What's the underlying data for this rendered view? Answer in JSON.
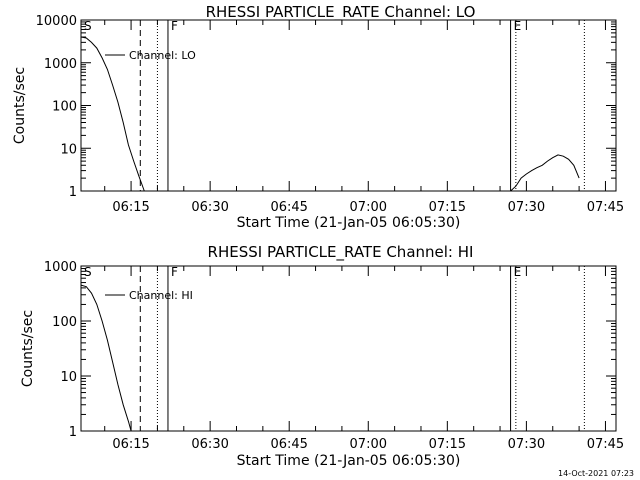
{
  "chart_data": [
    {
      "type": "line",
      "title": "RHESSI PARTICLE_RATE Channel: LO",
      "xlabel": "Start Time (21-Jan-05 06:05:30)",
      "ylabel": "Counts/sec",
      "yscale": "log",
      "ylim": [
        1,
        10000
      ],
      "ytick_labels": [
        "1",
        "10",
        "100",
        "1000",
        "10000"
      ],
      "xlim": [
        "06:05:30",
        "07:47:00"
      ],
      "xtick_labels": [
        "06:15",
        "06:30",
        "06:45",
        "07:00",
        "07:15",
        "07:30",
        "07:45"
      ],
      "legend": "Channel: LO",
      "markers": [
        {
          "label": "S",
          "time": "06:05:30",
          "style": "solid"
        },
        {
          "label": "",
          "time": "06:16:45",
          "style": "dashed"
        },
        {
          "label": "",
          "time": "06:20:00",
          "style": "dotted"
        },
        {
          "label": "F",
          "time": "06:22:00",
          "style": "solid"
        },
        {
          "label": "E",
          "time": "07:27:00",
          "style": "solid"
        },
        {
          "label": "",
          "time": "07:28:00",
          "style": "dotted"
        },
        {
          "label": "",
          "time": "07:41:00",
          "style": "dotted"
        }
      ],
      "series": [
        {
          "x": [
            "06:05:30",
            "06:06:30",
            "06:07:30",
            "06:08:30",
            "06:09:30",
            "06:10:30",
            "06:11:30",
            "06:12:30",
            "06:13:30",
            "06:14:30",
            "06:15:30",
            "06:16:30",
            "06:17:00",
            "06:17:30"
          ],
          "values": [
            4000,
            3800,
            3000,
            2200,
            1300,
            700,
            300,
            120,
            40,
            12,
            5,
            2.2,
            1.5,
            1
          ]
        },
        {
          "x": [
            "07:27:00",
            "07:28:00",
            "07:29:00",
            "07:30:00",
            "07:31:00",
            "07:32:00",
            "07:33:00",
            "07:34:00",
            "07:35:00",
            "07:36:00",
            "07:37:00",
            "07:38:00",
            "07:39:00",
            "07:40:00"
          ],
          "values": [
            1,
            1.3,
            2,
            2.5,
            3,
            3.5,
            4,
            5,
            6,
            7,
            6.5,
            5.5,
            4,
            2
          ]
        }
      ]
    },
    {
      "type": "line",
      "title": "RHESSI PARTICLE_RATE Channel: HI",
      "xlabel": "Start Time (21-Jan-05 06:05:30)",
      "ylabel": "Counts/sec",
      "yscale": "log",
      "ylim": [
        1,
        1000
      ],
      "ytick_labels": [
        "1",
        "10",
        "100",
        "1000"
      ],
      "xlim": [
        "06:05:30",
        "07:47:00"
      ],
      "xtick_labels": [
        "06:15",
        "06:30",
        "06:45",
        "07:00",
        "07:15",
        "07:30",
        "07:45"
      ],
      "legend": "Channel: HI",
      "markers": [
        {
          "label": "S",
          "time": "06:05:30",
          "style": "solid"
        },
        {
          "label": "",
          "time": "06:16:45",
          "style": "dashed"
        },
        {
          "label": "",
          "time": "06:20:00",
          "style": "dotted"
        },
        {
          "label": "F",
          "time": "06:22:00",
          "style": "solid"
        },
        {
          "label": "E",
          "time": "07:27:00",
          "style": "solid"
        },
        {
          "label": "",
          "time": "07:28:00",
          "style": "dotted"
        },
        {
          "label": "",
          "time": "07:41:00",
          "style": "dotted"
        }
      ],
      "series": [
        {
          "x": [
            "06:05:30",
            "06:06:30",
            "06:07:30",
            "06:08:30",
            "06:09:30",
            "06:10:30",
            "06:11:30",
            "06:12:30",
            "06:13:30",
            "06:14:30",
            "06:15:00"
          ],
          "values": [
            450,
            420,
            320,
            200,
            100,
            45,
            18,
            7,
            3,
            1.5,
            1
          ]
        }
      ]
    }
  ],
  "timestamp": "14-Oct-2021 07:23"
}
